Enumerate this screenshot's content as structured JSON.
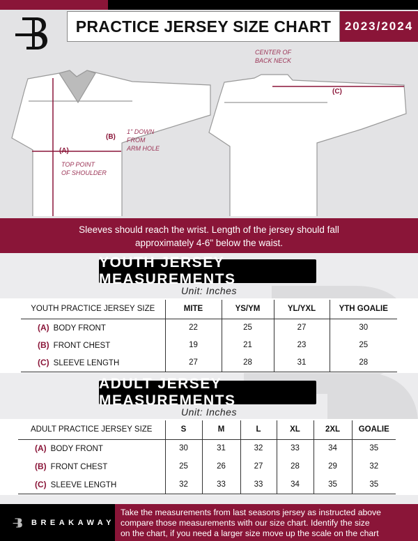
{
  "header": {
    "title": "PRACTICE JERSEY SIZE CHART",
    "season": "2023/2024",
    "logo_letter": "B"
  },
  "diagram": {
    "center_back_neck": "CENTER OF BACK NECK",
    "label_a": "(A)",
    "label_b": "(B)",
    "label_c": "(C)",
    "note_b": [
      "1\" DOWN",
      "FROM",
      "ARM HOLE"
    ],
    "note_a": [
      "TOP POINT",
      "OF SHOULDER"
    ],
    "center_back_neck_lines": [
      "CENTER OF",
      "BACK NECK"
    ]
  },
  "instructions": [
    "Sleeves should reach the wrist. Length of the jersey should fall",
    "approximately 4-6\" below the waist."
  ],
  "youth": {
    "title": "YOUTH JERSEY MEASUREMENTS",
    "unit": "Unit: Inches",
    "headers": [
      "YOUTH PRACTICE JERSEY SIZE",
      "MITE",
      "YS/YM",
      "YL/YXL",
      "YTH GOALIE"
    ],
    "rows": [
      {
        "code": "(A)",
        "label": "BODY FRONT",
        "values": [
          "22",
          "25",
          "27",
          "30"
        ]
      },
      {
        "code": "(B)",
        "label": "FRONT CHEST",
        "values": [
          "19",
          "21",
          "23",
          "25"
        ]
      },
      {
        "code": "(C)",
        "label": "SLEEVE LENGTH",
        "values": [
          "27",
          "28",
          "31",
          "28"
        ]
      }
    ]
  },
  "adult": {
    "title": "ADULT JERSEY MEASUREMENTS",
    "unit": "Unit: Inches",
    "headers": [
      "ADULT PRACTICE JERSEY SIZE",
      "S",
      "M",
      "L",
      "XL",
      "2XL",
      "GOALIE"
    ],
    "rows": [
      {
        "code": "(A)",
        "label": "BODY FRONT",
        "values": [
          "30",
          "31",
          "32",
          "33",
          "34",
          "35"
        ]
      },
      {
        "code": "(B)",
        "label": "FRONT CHEST",
        "values": [
          "25",
          "26",
          "27",
          "28",
          "29",
          "32"
        ]
      },
      {
        "code": "(C)",
        "label": "SLEEVE LENGTH",
        "values": [
          "32",
          "33",
          "33",
          "34",
          "35",
          "35"
        ]
      }
    ]
  },
  "footer": {
    "brand": "BREAKAWAY",
    "text": [
      "Take the measurements from last seasons jersey as instructed above",
      "compare those measurements  with our size chart. Identify the size",
      "on the chart, if you need a larger size move up the scale on the chart"
    ]
  },
  "colors": {
    "brand": "#8a1538",
    "black": "#000000",
    "background": "#e3e3e5"
  }
}
